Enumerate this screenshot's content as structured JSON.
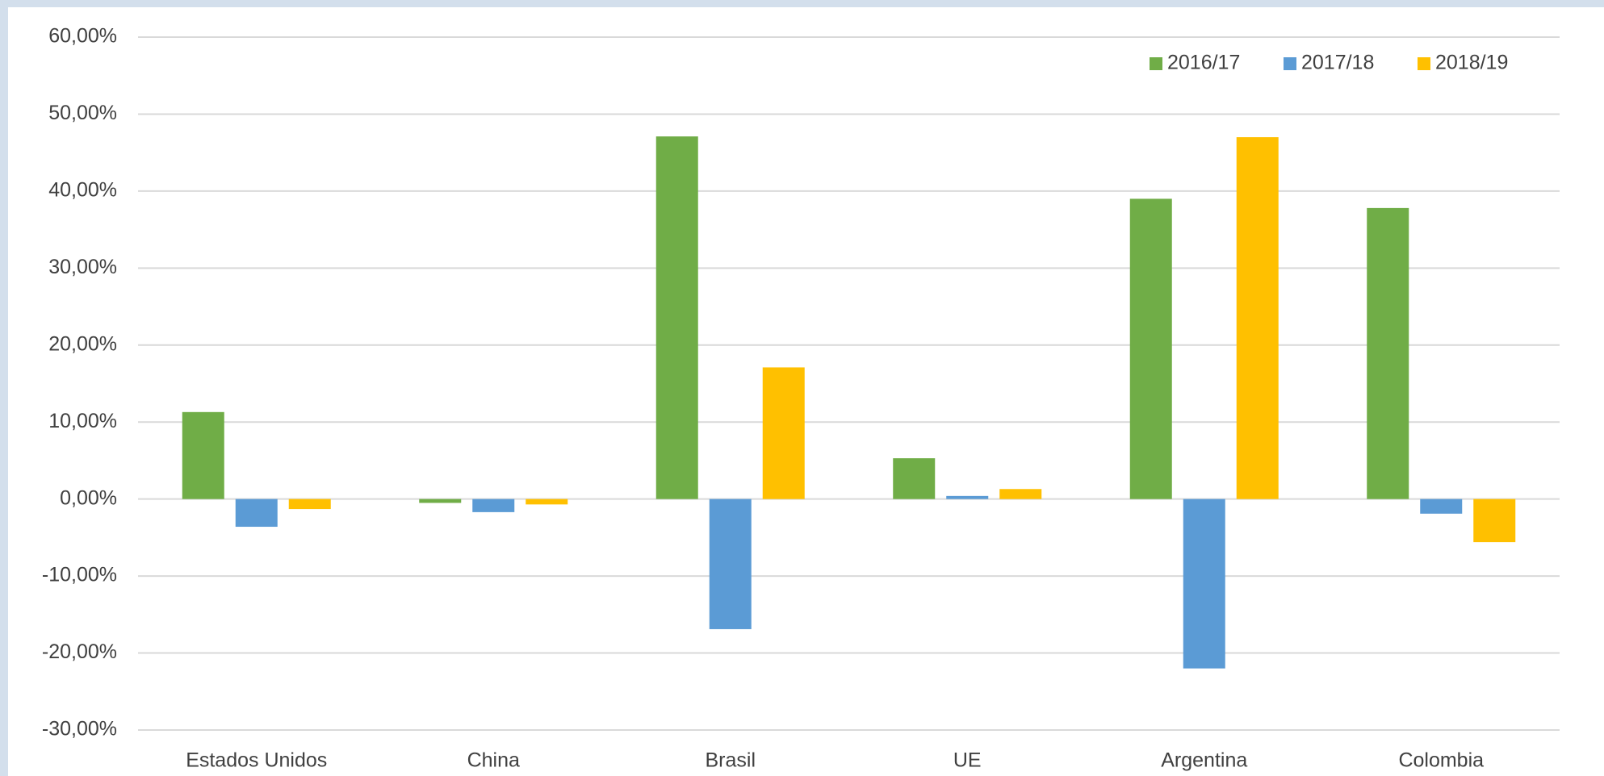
{
  "chart_data": {
    "type": "bar",
    "categories": [
      "Estados Unidos",
      "China",
      "Brasil",
      "UE",
      "Argentina",
      "Colombia"
    ],
    "series": [
      {
        "name": "2016/17",
        "color": "#70ad47",
        "values": [
          11.3,
          -0.5,
          47.1,
          5.3,
          39.0,
          37.8
        ]
      },
      {
        "name": "2017/18",
        "color": "#5b9bd5",
        "values": [
          -3.6,
          -1.7,
          -16.9,
          0.4,
          -22.0,
          -1.9
        ]
      },
      {
        "name": "2018/19",
        "color": "#ffc000",
        "values": [
          -1.3,
          -0.7,
          17.1,
          1.3,
          47.0,
          -5.6
        ]
      }
    ],
    "ylim": [
      -30,
      60
    ],
    "yticks": [
      {
        "value": -30,
        "label": "-30,00%"
      },
      {
        "value": -20,
        "label": "-20,00%"
      },
      {
        "value": -10,
        "label": "-10,00%"
      },
      {
        "value": 0,
        "label": "0,00%"
      },
      {
        "value": 10,
        "label": "10,00%"
      },
      {
        "value": 20,
        "label": "20,00%"
      },
      {
        "value": 30,
        "label": "30,00%"
      },
      {
        "value": 40,
        "label": "40,00%"
      },
      {
        "value": 50,
        "label": "50,00%"
      },
      {
        "value": 60,
        "label": "60,00%"
      }
    ],
    "grid": true,
    "legend": "top-right"
  }
}
